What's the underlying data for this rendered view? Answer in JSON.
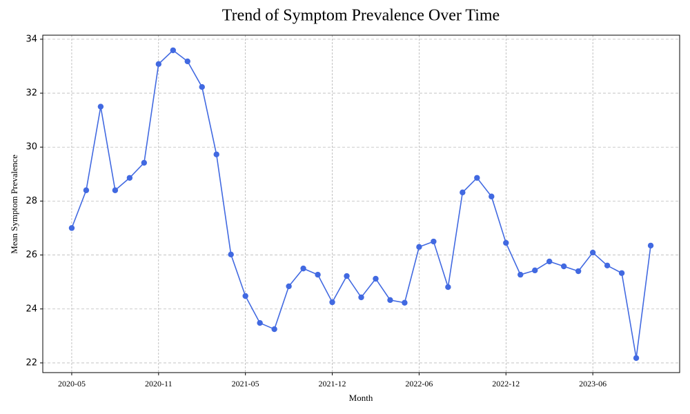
{
  "chart_data": {
    "type": "line",
    "title": "Trend of Symptom Prevalence Over Time",
    "x_label": "Month",
    "y_label": "Mean Symptom Prevalence",
    "categories": [
      "2020-05",
      null,
      null,
      null,
      null,
      null,
      "2020-11",
      null,
      null,
      null,
      null,
      null,
      "2021-05",
      null,
      null,
      null,
      null,
      null,
      "2021-12",
      null,
      null,
      null,
      null,
      null,
      "2022-06",
      null,
      null,
      null,
      null,
      null,
      "2022-12",
      null,
      null,
      null,
      null,
      null,
      "2023-06",
      null,
      null,
      null,
      null
    ],
    "series": [
      {
        "color": "#4169e1",
        "values": [
          27.0,
          28.4,
          31.5,
          28.4,
          28.86,
          29.42,
          33.08,
          33.59,
          33.18,
          32.23,
          29.73,
          26.02,
          24.48,
          23.48,
          23.25,
          24.84,
          25.5,
          25.27,
          24.25,
          25.22,
          24.43,
          25.12,
          24.33,
          24.23,
          26.3,
          26.5,
          24.81,
          28.32,
          28.86,
          28.17,
          26.45,
          25.27,
          25.43,
          25.76,
          25.58,
          25.4,
          26.09,
          25.61,
          25.33,
          22.18,
          26.35
        ]
      }
    ],
    "ylim": [
      21.64,
      34.15
    ],
    "yticks": [
      22,
      24,
      26,
      28,
      30,
      32,
      34
    ],
    "grid": true
  }
}
